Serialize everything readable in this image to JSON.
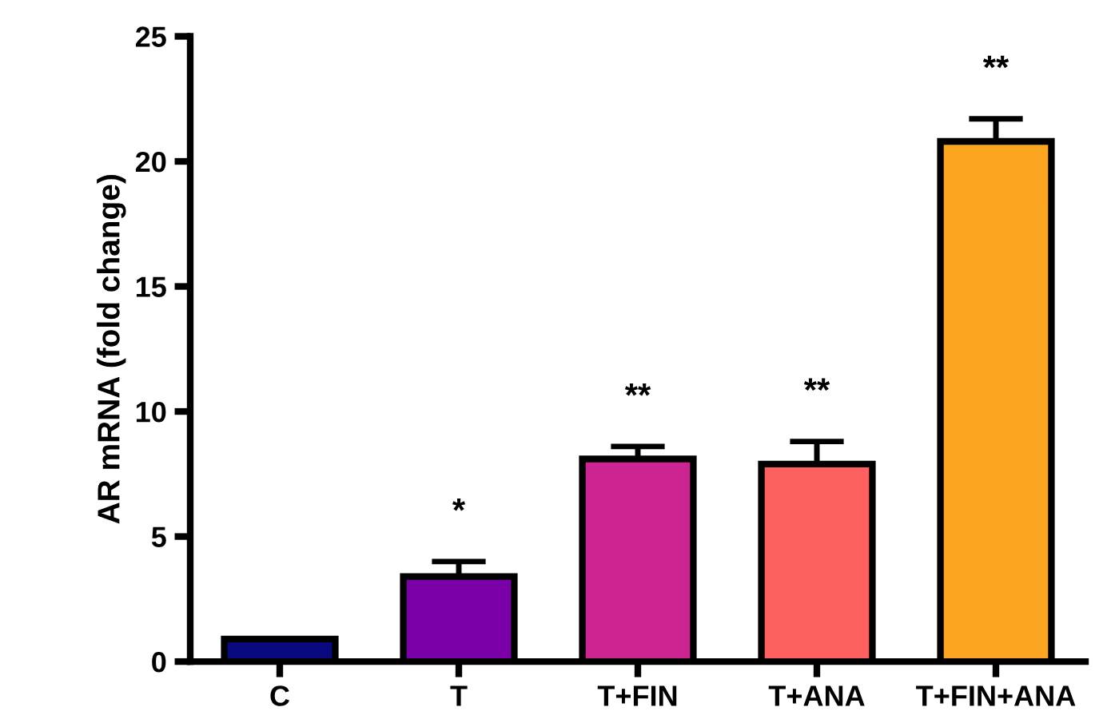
{
  "chart_data": {
    "type": "bar",
    "ylabel": "AR mRNA (fold change)",
    "categories": [
      "C",
      "T",
      "T+FIN",
      "T+ANA",
      "T+FIN+ANA"
    ],
    "values": [
      0.9,
      3.4,
      8.1,
      7.9,
      20.8
    ],
    "errors": [
      null,
      [
        3.4,
        4.0
      ],
      [
        8.1,
        8.6
      ],
      [
        7.9,
        8.8
      ],
      [
        20.8,
        21.7
      ]
    ],
    "colors": [
      "#0a0a80",
      "#7b00a8",
      "#cc2490",
      "#fe5f5f",
      "#fca520"
    ],
    "ylim": [
      0,
      25
    ],
    "yticks": [
      0,
      5,
      10,
      15,
      20,
      25
    ],
    "annotations": [
      "*",
      "**",
      "**",
      "**"
    ],
    "grid": false,
    "legend": false
  }
}
